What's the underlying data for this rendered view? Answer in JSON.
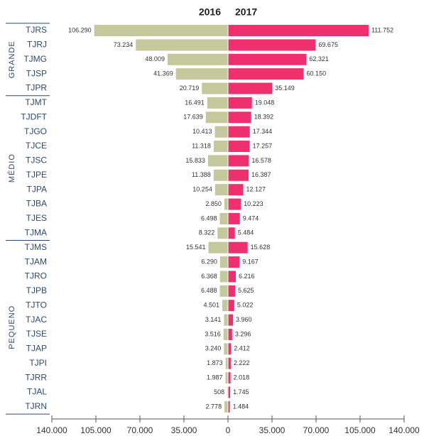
{
  "chart_data": {
    "type": "butterfly",
    "categories": [
      "TJRS",
      "TJRJ",
      "TJMG",
      "TJSP",
      "TJPR",
      "TJMT",
      "TJDFT",
      "TJGO",
      "TJCE",
      "TJSC",
      "TJPE",
      "TJPA",
      "TJBA",
      "TJES",
      "TJMA",
      "TJMS",
      "TJAM",
      "TJRO",
      "TJPB",
      "TJTO",
      "TJAC",
      "TJSE",
      "TJAP",
      "TJPI",
      "TJRR",
      "TJAL",
      "TJRN"
    ],
    "groups": [
      {
        "label": "GRANDE",
        "size": 5
      },
      {
        "label": "MÉDIO",
        "size": 10
      },
      {
        "label": "PEQUENO",
        "size": 12
      }
    ],
    "series": [
      {
        "name": "2016",
        "color": "#c5c89b",
        "side": "left",
        "values": [
          106290,
          73234,
          48009,
          41369,
          20719,
          16491,
          17639,
          10413,
          11318,
          15833,
          11388,
          10254,
          2850,
          6498,
          8322,
          15541,
          6290,
          6368,
          6488,
          4501,
          3141,
          3516,
          3240,
          1873,
          1987,
          508,
          2778
        ],
        "value_labels": [
          "106.290",
          "73.234",
          "48.009",
          "41.369",
          "20.719",
          "16.491",
          "17.639",
          "10.413",
          "11.318",
          "15.833",
          "11.388",
          "10.254",
          "2.850",
          "6.498",
          "8.322",
          "15.541",
          "6.290",
          "6.368",
          "6.488",
          "4.501",
          "3.141",
          "3.516",
          "3.240",
          "1.873",
          "1.987",
          "508",
          "2.778"
        ]
      },
      {
        "name": "2017",
        "color": "#f0306e",
        "side": "right",
        "values": [
          111752,
          69675,
          62321,
          60150,
          35149,
          19048,
          18392,
          17344,
          17257,
          16578,
          16387,
          12127,
          10223,
          9474,
          5484,
          15628,
          9167,
          6216,
          5625,
          5022,
          3960,
          3296,
          2412,
          2222,
          2018,
          1745,
          1484
        ],
        "value_labels": [
          "111.752",
          "69.675",
          "62.321",
          "60.150",
          "35.149",
          "19.048",
          "18.392",
          "17.344",
          "17.257",
          "16.578",
          "16.387",
          "12.127",
          "10.223",
          "9.474",
          "5.484",
          "15.628",
          "9.167",
          "6.216",
          "5.625",
          "5.022",
          "3.960",
          "3.296",
          "2.412",
          "2.222",
          "2.018",
          "1.745",
          "1.484"
        ]
      }
    ],
    "xlim": [
      0,
      140000
    ],
    "xticks": [
      0,
      {
        "value": 35000,
        "label": "35.000"
      },
      {
        "value": 70000,
        "label": "70.000"
      },
      {
        "value": 105000,
        "label": "105.000"
      },
      {
        "value": 140000,
        "label": "140.000"
      }
    ]
  }
}
